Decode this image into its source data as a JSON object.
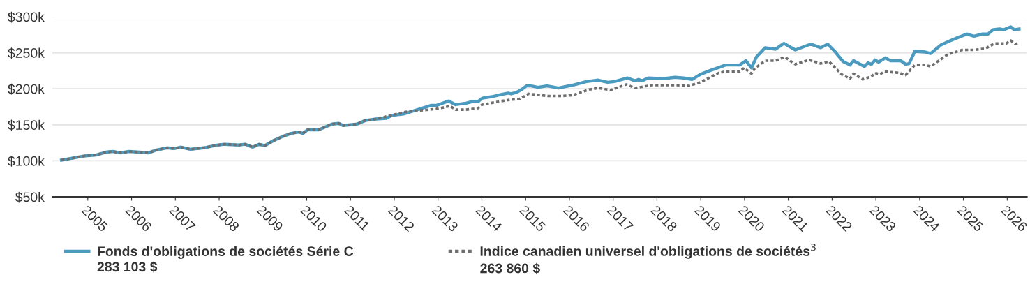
{
  "chart_data": {
    "type": "line",
    "xlim": [
      2004.19,
      2026.45
    ],
    "xticks": [
      2005,
      2006,
      2007,
      2008,
      2009,
      2010,
      2011,
      2012,
      2013,
      2014,
      2015,
      2016,
      2017,
      2018,
      2019,
      2020,
      2021,
      2022,
      2023,
      2024,
      2025,
      2026
    ],
    "ylim": [
      50,
      300
    ],
    "yticks": [
      {
        "value": 50,
        "label": "$50k"
      },
      {
        "value": 100,
        "label": "$100k"
      },
      {
        "value": 150,
        "label": "$150k"
      },
      {
        "value": 200,
        "label": "$200k"
      },
      {
        "value": 250,
        "label": "$250k"
      },
      {
        "value": 300,
        "label": "$300k"
      }
    ],
    "grid": "y",
    "legend": "bottom",
    "marker": "none",
    "annotations": [
      "283 103 $",
      "263 860 $"
    ],
    "series": [
      {
        "name": "Fonds d'obligations de sociétés Série C",
        "color": "#4a9bbf",
        "line_style": "solid",
        "x": [
          2004.4,
          2004.95,
          2005.19,
          2005.41,
          2005.57,
          2005.75,
          2005.94,
          2006.18,
          2006.38,
          2006.57,
          2006.81,
          2006.97,
          2007.13,
          2007.34,
          2007.65,
          2007.97,
          2008.13,
          2008.45,
          2008.59,
          2008.77,
          2008.91,
          2009.04,
          2009.24,
          2009.46,
          2009.64,
          2009.83,
          2009.91,
          2010.02,
          2010.27,
          2010.58,
          2010.73,
          2010.83,
          2011.15,
          2011.34,
          2011.58,
          2011.82,
          2011.94,
          2012.21,
          2012.53,
          2012.85,
          2012.97,
          2013.24,
          2013.4,
          2013.64,
          2013.77,
          2013.91,
          2014.01,
          2014.23,
          2014.44,
          2014.6,
          2014.67,
          2014.79,
          2014.91,
          2015.02,
          2015.12,
          2015.28,
          2015.5,
          2015.75,
          2016.07,
          2016.39,
          2016.66,
          2016.87,
          2017.03,
          2017.33,
          2017.5,
          2017.58,
          2017.66,
          2017.8,
          2018.14,
          2018.41,
          2018.61,
          2018.8,
          2018.99,
          2019.2,
          2019.57,
          2019.89,
          2020.03,
          2020.16,
          2020.27,
          2020.47,
          2020.71,
          2020.9,
          2021.16,
          2021.51,
          2021.74,
          2021.9,
          2022.06,
          2022.25,
          2022.41,
          2022.49,
          2022.74,
          2022.82,
          2022.9,
          2022.98,
          2023.06,
          2023.22,
          2023.33,
          2023.57,
          2023.68,
          2023.76,
          2023.89,
          2024.13,
          2024.25,
          2024.49,
          2024.71,
          2024.87,
          2025.08,
          2025.24,
          2025.44,
          2025.56,
          2025.68,
          2025.83,
          2025.92,
          2026.08,
          2026.16,
          2026.27
        ],
        "values": [
          101,
          107,
          108,
          112,
          113,
          111,
          113,
          112,
          111,
          115,
          118,
          117,
          119,
          116,
          118,
          122,
          123,
          122,
          123,
          119,
          123,
          121,
          128,
          134,
          138,
          140,
          138,
          143,
          143,
          151,
          152,
          149,
          151,
          156,
          158,
          159,
          163,
          165,
          171,
          177,
          177,
          183,
          178,
          180,
          182,
          182,
          187,
          189,
          192,
          194,
          193,
          195,
          199,
          204,
          204,
          202,
          204,
          201,
          205,
          210,
          212,
          209,
          210,
          215,
          211,
          213,
          211,
          215,
          214,
          216,
          215,
          213,
          220,
          225,
          233,
          233,
          239,
          229,
          244,
          257,
          255,
          263,
          254,
          262,
          257,
          262,
          252,
          238,
          233,
          239,
          231,
          236,
          234,
          240,
          237,
          243,
          239,
          239,
          234,
          235,
          252,
          251,
          249,
          261,
          267,
          271,
          276,
          273,
          276,
          276,
          282,
          283,
          282,
          286,
          282,
          283
        ]
      },
      {
        "name": "Indice canadien universel d'obligations de sociétés$^{3}$",
        "color": "#6e6e6e",
        "line_style": "dotted",
        "x": [
          2004.4,
          2004.95,
          2005.19,
          2005.41,
          2005.57,
          2005.75,
          2005.94,
          2006.18,
          2006.38,
          2006.57,
          2006.81,
          2006.97,
          2007.13,
          2007.34,
          2007.65,
          2007.97,
          2008.13,
          2008.45,
          2008.59,
          2008.77,
          2008.91,
          2009.04,
          2009.24,
          2009.46,
          2009.64,
          2009.83,
          2009.91,
          2010.02,
          2010.27,
          2010.58,
          2010.73,
          2010.83,
          2011.15,
          2011.34,
          2011.58,
          2012.26,
          2012.96,
          2013.28,
          2013.4,
          2013.64,
          2013.91,
          2014.01,
          2014.55,
          2014.86,
          2015.07,
          2015.5,
          2015.82,
          2016.07,
          2016.45,
          2016.66,
          2016.87,
          2016.93,
          2017.3,
          2017.5,
          2017.88,
          2018.46,
          2018.73,
          2018.99,
          2019.41,
          2019.57,
          2019.89,
          2019.99,
          2020.16,
          2020.23,
          2020.47,
          2020.71,
          2020.92,
          2021.16,
          2021.47,
          2021.74,
          2021.93,
          2022.22,
          2022.41,
          2022.49,
          2022.7,
          2022.9,
          2022.98,
          2023.09,
          2023.2,
          2023.54,
          2023.68,
          2023.89,
          2024.13,
          2024.25,
          2024.65,
          2024.97,
          2025.24,
          2025.51,
          2025.71,
          2025.98,
          2026.08,
          2026.19,
          2026.27
        ],
        "values": [
          101,
          107,
          108,
          112,
          113,
          111,
          113,
          112,
          111,
          115,
          118,
          117,
          119,
          116,
          118,
          122,
          123,
          122,
          123,
          119,
          123,
          121,
          128,
          134,
          138,
          140,
          138,
          143,
          143,
          151,
          152,
          149,
          151,
          156,
          158,
          168,
          172,
          176,
          171,
          171,
          173,
          178,
          184,
          186,
          193,
          190,
          190,
          191,
          199,
          201,
          199,
          198,
          206,
          201,
          205,
          205,
          204,
          209,
          222,
          224,
          224,
          229,
          221,
          228,
          239,
          239,
          244,
          234,
          240,
          235,
          238,
          220,
          214,
          221,
          213,
          217,
          222,
          220,
          224,
          222,
          219,
          233,
          233,
          231,
          248,
          254,
          254,
          256,
          263,
          263,
          267,
          262,
          264
        ]
      }
    ]
  }
}
